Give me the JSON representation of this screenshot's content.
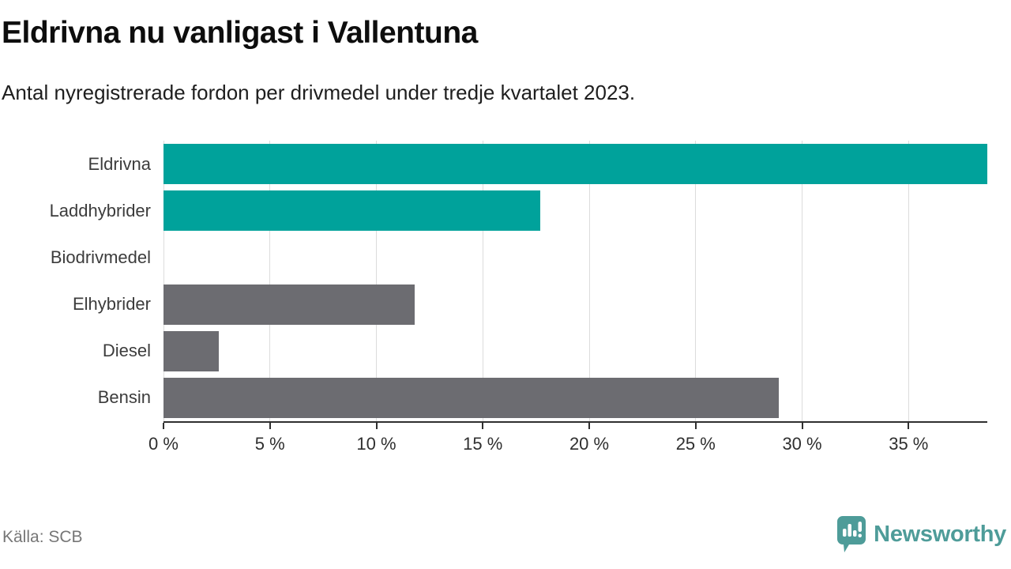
{
  "header": {
    "title": "Eldrivna nu vanligast i Vallentuna",
    "subtitle": "Antal nyregistrerade fordon per drivmedel under tredje kvartalet 2023."
  },
  "chart_data": {
    "type": "bar",
    "orientation": "horizontal",
    "title": "Eldrivna nu vanligast i Vallentuna",
    "subtitle": "Antal nyregistrerade fordon per drivmedel under tredje kvartalet 2023.",
    "categories": [
      "Eldrivna",
      "Laddhybrider",
      "Biodrivmedel",
      "Elhybrider",
      "Diesel",
      "Bensin"
    ],
    "values": [
      38.7,
      17.7,
      0,
      11.8,
      2.6,
      28.9
    ],
    "bar_colors": [
      "#00a29b",
      "#00a29b",
      "#00a29b",
      "#6c6c71",
      "#6c6c71",
      "#6c6c71"
    ],
    "xlim": [
      0,
      38.7
    ],
    "ticks": [
      0,
      5,
      10,
      15,
      20,
      25,
      30,
      35
    ],
    "tick_labels": [
      "0 %",
      "5 %",
      "10 %",
      "15 %",
      "20 %",
      "25 %",
      "30 %",
      "35 %"
    ],
    "xlabel": "",
    "ylabel": "",
    "grid": true,
    "legend": "none",
    "accent_color": "#00a29b",
    "neutral_color": "#6c6c71"
  },
  "footer": {
    "source": "Källa: SCB",
    "brand": "Newsworthy",
    "brand_color": "#4e9c99"
  }
}
